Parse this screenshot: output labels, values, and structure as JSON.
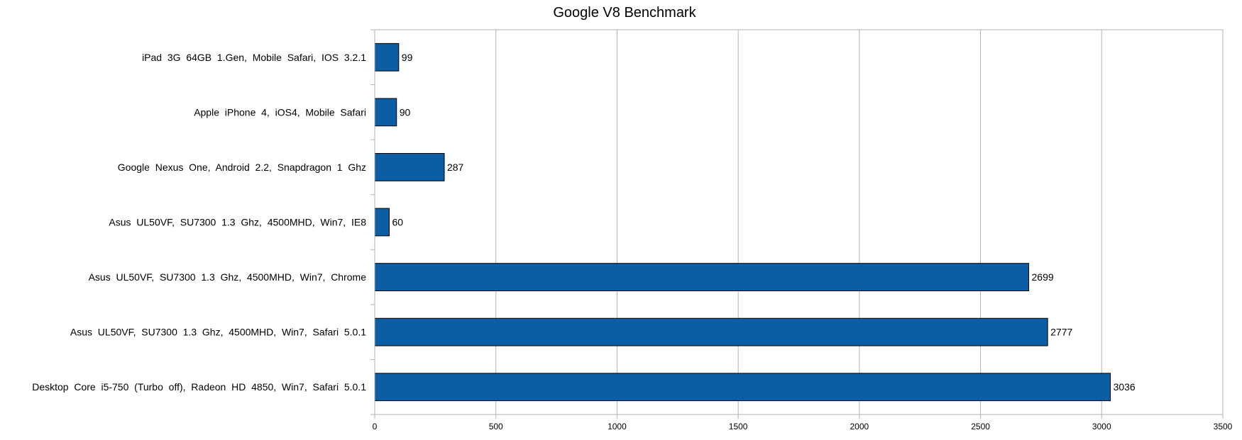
{
  "chart_data": {
    "type": "bar",
    "orientation": "horizontal",
    "title": "Google V8 Benchmark",
    "xlabel": "",
    "ylabel": "",
    "xlim": [
      0,
      3500
    ],
    "x_ticks": [
      0,
      500,
      1000,
      1500,
      2000,
      2500,
      3000,
      3500
    ],
    "grid": true,
    "legend": "none",
    "bar_color": "#0b5ea3",
    "categories": [
      "iPad  3G  64GB  1.Gen,  Mobile  Safari,  IOS  3.2.1",
      "Apple  iPhone  4,  iOS4,  Mobile  Safari",
      "Google  Nexus  One,  Android  2.2,  Snapdragon  1  Ghz",
      "Asus  UL50VF,  SU7300  1.3  Ghz,  4500MHD,  Win7,  IE8",
      "Asus  UL50VF,  SU7300  1.3  Ghz,  4500MHD,  Win7,  Chrome",
      "Asus  UL50VF,  SU7300  1.3  Ghz,  4500MHD,  Win7,  Safari  5.0.1",
      "Desktop  Core  i5-750  (Turbo  off),  Radeon  HD  4850,  Win7,  Safari  5.0.1"
    ],
    "values": [
      99,
      90,
      287,
      60,
      2699,
      2777,
      3036
    ]
  }
}
